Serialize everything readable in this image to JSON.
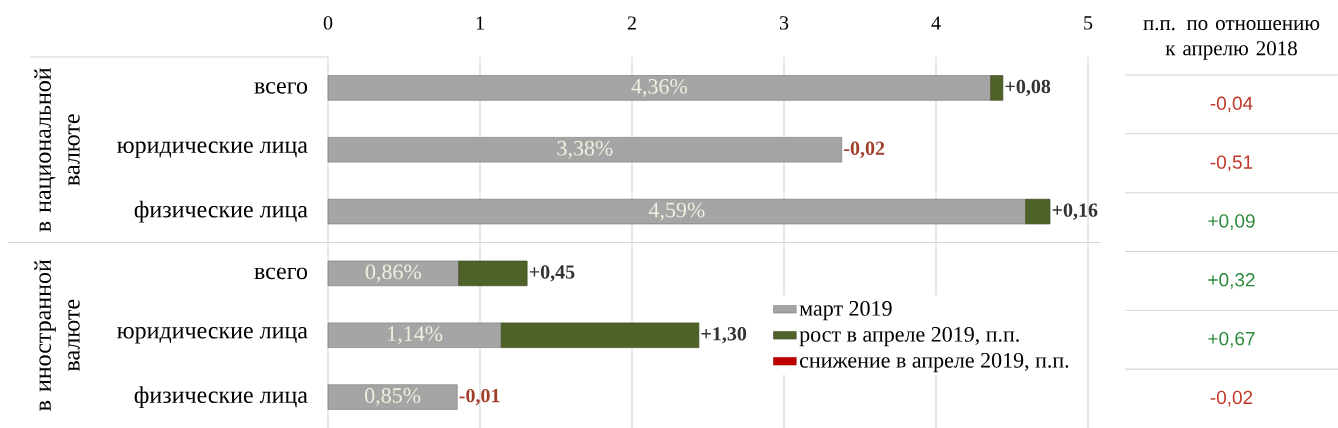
{
  "chart_data": [
    {
      "type": "bar",
      "orientation": "horizontal",
      "stacked": true,
      "ylabel": "в национальной валюте",
      "categories": [
        "всего",
        "юридические лица",
        "физические лица"
      ],
      "series": [
        {
          "color": "#a5a5a5",
          "values": [
            4.36,
            3.38,
            4.59
          ],
          "value_labels": [
            "4,36%",
            "3,38%",
            "4,59%"
          ]
        },
        {
          "color": "#4f6228",
          "values": [
            0.08,
            null,
            0.16
          ],
          "value_labels": [
            "+0,08",
            null,
            "+0,16"
          ]
        }
      ],
      "annotations": [
        {
          "text": "-0,02",
          "x": 3.38,
          "y": "юридические лица"
        }
      ],
      "xlim": [
        0,
        5
      ],
      "xticks": [
        0,
        1,
        2,
        3,
        4,
        5
      ],
      "grid": "x"
    },
    {
      "type": "bar",
      "orientation": "horizontal",
      "stacked": true,
      "ylabel": "в иностранной валюте",
      "categories": [
        "всего",
        "юридические лица",
        "физические лица"
      ],
      "series": [
        {
          "name": "март 2019",
          "color": "#a5a5a5",
          "values": [
            0.86,
            1.14,
            0.85
          ],
          "value_labels": [
            "0,86%",
            "1,14%",
            "0,85%"
          ]
        },
        {
          "name": "рост в апреле 2019, п.п.",
          "color": "#4f6228",
          "values": [
            0.45,
            1.3,
            null
          ],
          "value_labels": [
            "+0,45",
            "+1,30",
            null
          ]
        },
        {
          "name": "снижение в апреле 2019, п.п.",
          "color": "#c00000",
          "values": [
            null,
            null,
            null
          ]
        }
      ],
      "annotations": [
        {
          "text": "-0,01",
          "x": 0.85,
          "y": "физические лица"
        }
      ],
      "xlim": [
        0,
        5
      ],
      "xticks": [
        0,
        1,
        2,
        3,
        4,
        5
      ],
      "grid": "x",
      "legend": "right",
      "tick_labels": "y"
    },
    {
      "type": "other",
      "title": "п.п. по отношению к апрелю 2018",
      "values": [
        -0.04,
        -0.51,
        0.09,
        0.32,
        0.67,
        -0.02
      ],
      "value_labels": [
        "-0,04",
        "-0,51",
        "+0,09",
        "+0,32",
        "+0,67",
        "-0,02"
      ]
    }
  ]
}
